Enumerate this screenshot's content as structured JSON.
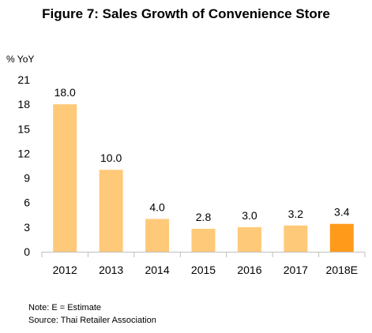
{
  "title": "Figure 7: Sales Growth of Convenience Store",
  "notes": {
    "note": "Note: E = Estimate",
    "source": "Source: Thai Retailer Association"
  },
  "chart_data": {
    "type": "bar",
    "title": "Figure 7: Sales Growth of Convenience Store",
    "ylabel": "% YoY",
    "xlabel": "",
    "categories": [
      "2012",
      "2013",
      "2014",
      "2015",
      "2016",
      "2017",
      "2018E"
    ],
    "values": [
      18.0,
      10.0,
      4.0,
      2.8,
      3.0,
      3.2,
      3.4
    ],
    "data_labels": [
      "18.0",
      "10.0",
      "4.0",
      "2.8",
      "3.0",
      "3.2",
      "3.4"
    ],
    "ylim": [
      0,
      21
    ],
    "yticks": [
      0,
      3,
      6,
      9,
      12,
      15,
      18,
      21
    ],
    "grid": false,
    "legend": "none",
    "colors": {
      "actual": "#FFC97A",
      "estimate": "#FF9A1A",
      "axis": "#bfbfbf"
    }
  }
}
